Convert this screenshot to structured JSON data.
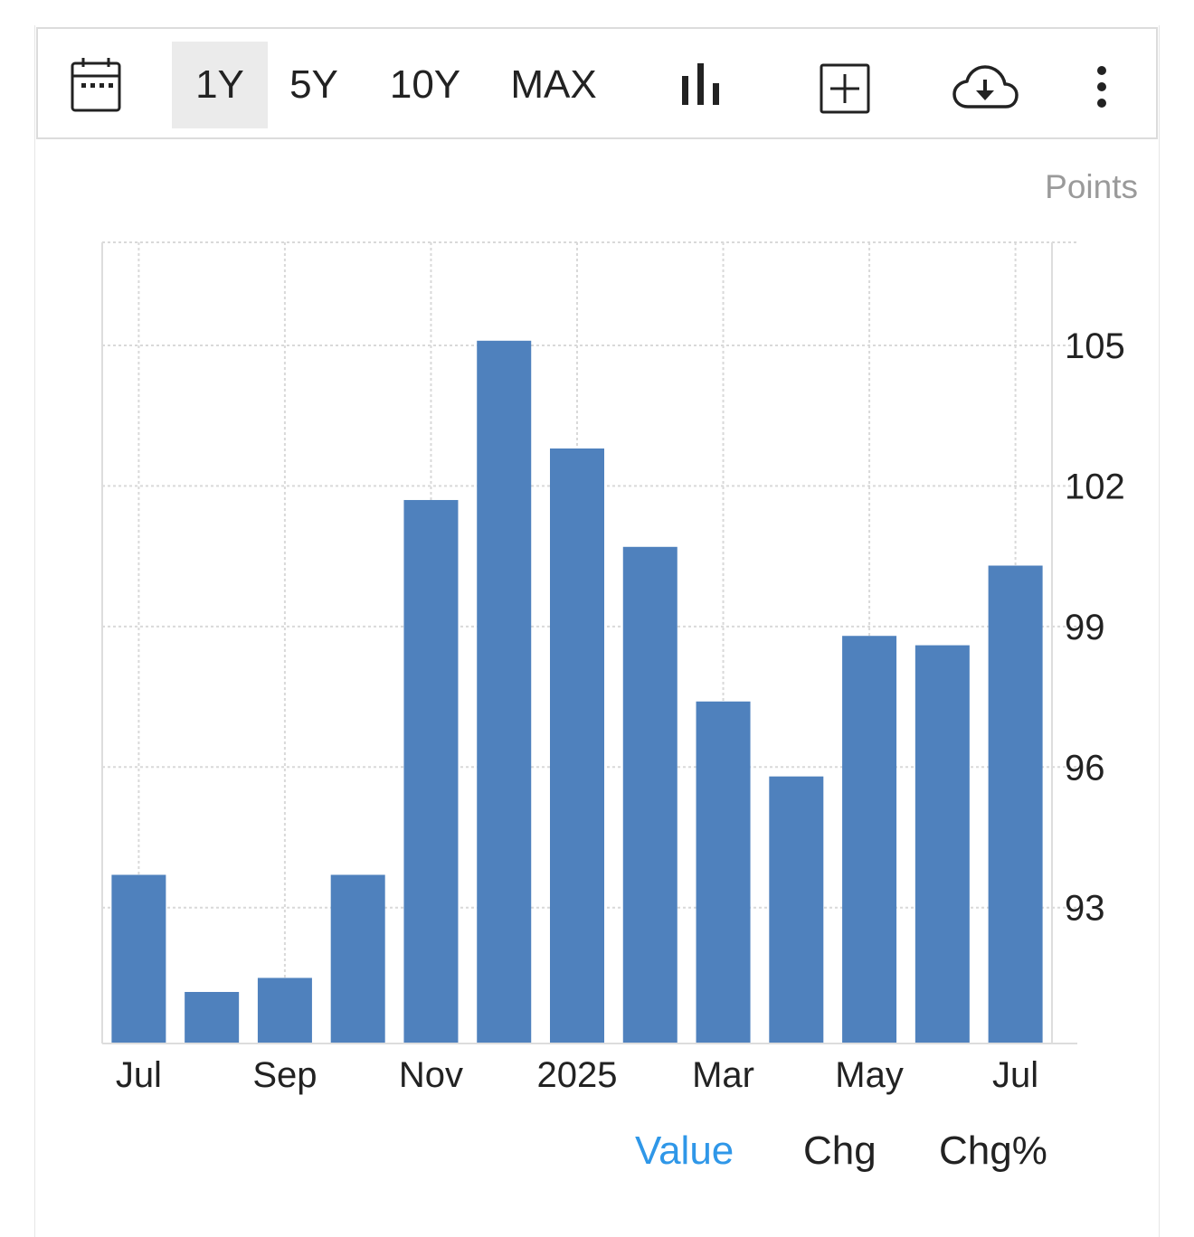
{
  "toolbar": {
    "ranges": [
      "1Y",
      "5Y",
      "10Y",
      "MAX"
    ],
    "active_range": "1Y",
    "icons": [
      "calendar-icon",
      "bar-chart-icon",
      "add-box-icon",
      "cloud-download-icon",
      "more-vertical-icon"
    ]
  },
  "unit_label": "Points",
  "tabs": {
    "value": "Value",
    "chg": "Chg",
    "chg_pct": "Chg%",
    "active": "Value"
  },
  "colors": {
    "bar": "#4f81bd",
    "active_tab": "#2f97e8",
    "grid": "#d9d9d9",
    "active_range_bg": "#ebebeb"
  },
  "chart_data": {
    "type": "bar",
    "categories": [
      "2024-07",
      "2024-08",
      "2024-09",
      "2024-10",
      "2024-11",
      "2024-12",
      "2025-01",
      "2025-02",
      "2025-03",
      "2025-04",
      "2025-05",
      "2025-06",
      "2025-07"
    ],
    "values": [
      93.7,
      91.2,
      91.5,
      93.7,
      101.7,
      105.1,
      102.8,
      100.7,
      97.4,
      95.8,
      98.8,
      98.6,
      100.3
    ],
    "x_tick_labels": [
      "Jul",
      "Sep",
      "Nov",
      "2025",
      "Mar",
      "May",
      "Jul"
    ],
    "x_tick_categories": [
      "2024-07",
      "2024-09",
      "2024-11",
      "2025-01",
      "2025-03",
      "2025-05",
      "2025-07"
    ],
    "y_ticks": [
      93,
      96,
      99,
      102,
      105
    ],
    "ylim": [
      90.1,
      107.2
    ],
    "ylabel": "Points",
    "y_axis_position": "right",
    "grid": true
  }
}
